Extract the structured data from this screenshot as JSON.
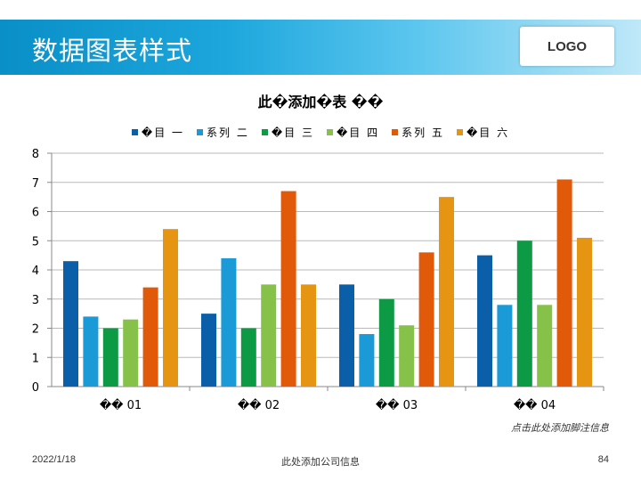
{
  "slide": {
    "title": "数据图表样式",
    "logo": "LOGO",
    "note": "点击此处添加脚注信息",
    "date": "2022/1/18",
    "company": "此处添加公司信息",
    "page": "84"
  },
  "colors": {
    "banner": "#1ca6dc",
    "series": [
      "#0b5fa8",
      "#1a9ad6",
      "#0d9a44",
      "#86c24a",
      "#e05a0a",
      "#e69512"
    ]
  },
  "chart_data": {
    "type": "bar",
    "title": "此�添加�表 ��",
    "categories": [
      "�� 01",
      "�� 02",
      "�� 03",
      "�� 04"
    ],
    "series": [
      {
        "name": "�目 一",
        "values": [
          4.3,
          2.5,
          3.5,
          4.5
        ]
      },
      {
        "name": "系列 二",
        "values": [
          2.4,
          4.4,
          1.8,
          2.8
        ]
      },
      {
        "name": "�目 三",
        "values": [
          2.0,
          2.0,
          3.0,
          5.0
        ]
      },
      {
        "name": "�目 四",
        "values": [
          2.3,
          3.5,
          2.1,
          2.8
        ]
      },
      {
        "name": "系列 五",
        "values": [
          3.4,
          6.7,
          4.6,
          7.1
        ]
      },
      {
        "name": "�目 六",
        "values": [
          5.4,
          3.5,
          6.5,
          5.1
        ]
      }
    ],
    "ylim": [
      0,
      8
    ],
    "yticks": [
      "0",
      "1",
      "2",
      "3",
      "4",
      "5",
      "6",
      "7",
      "8"
    ],
    "grid": true,
    "legend": "top",
    "xlabel": "",
    "ylabel": ""
  }
}
